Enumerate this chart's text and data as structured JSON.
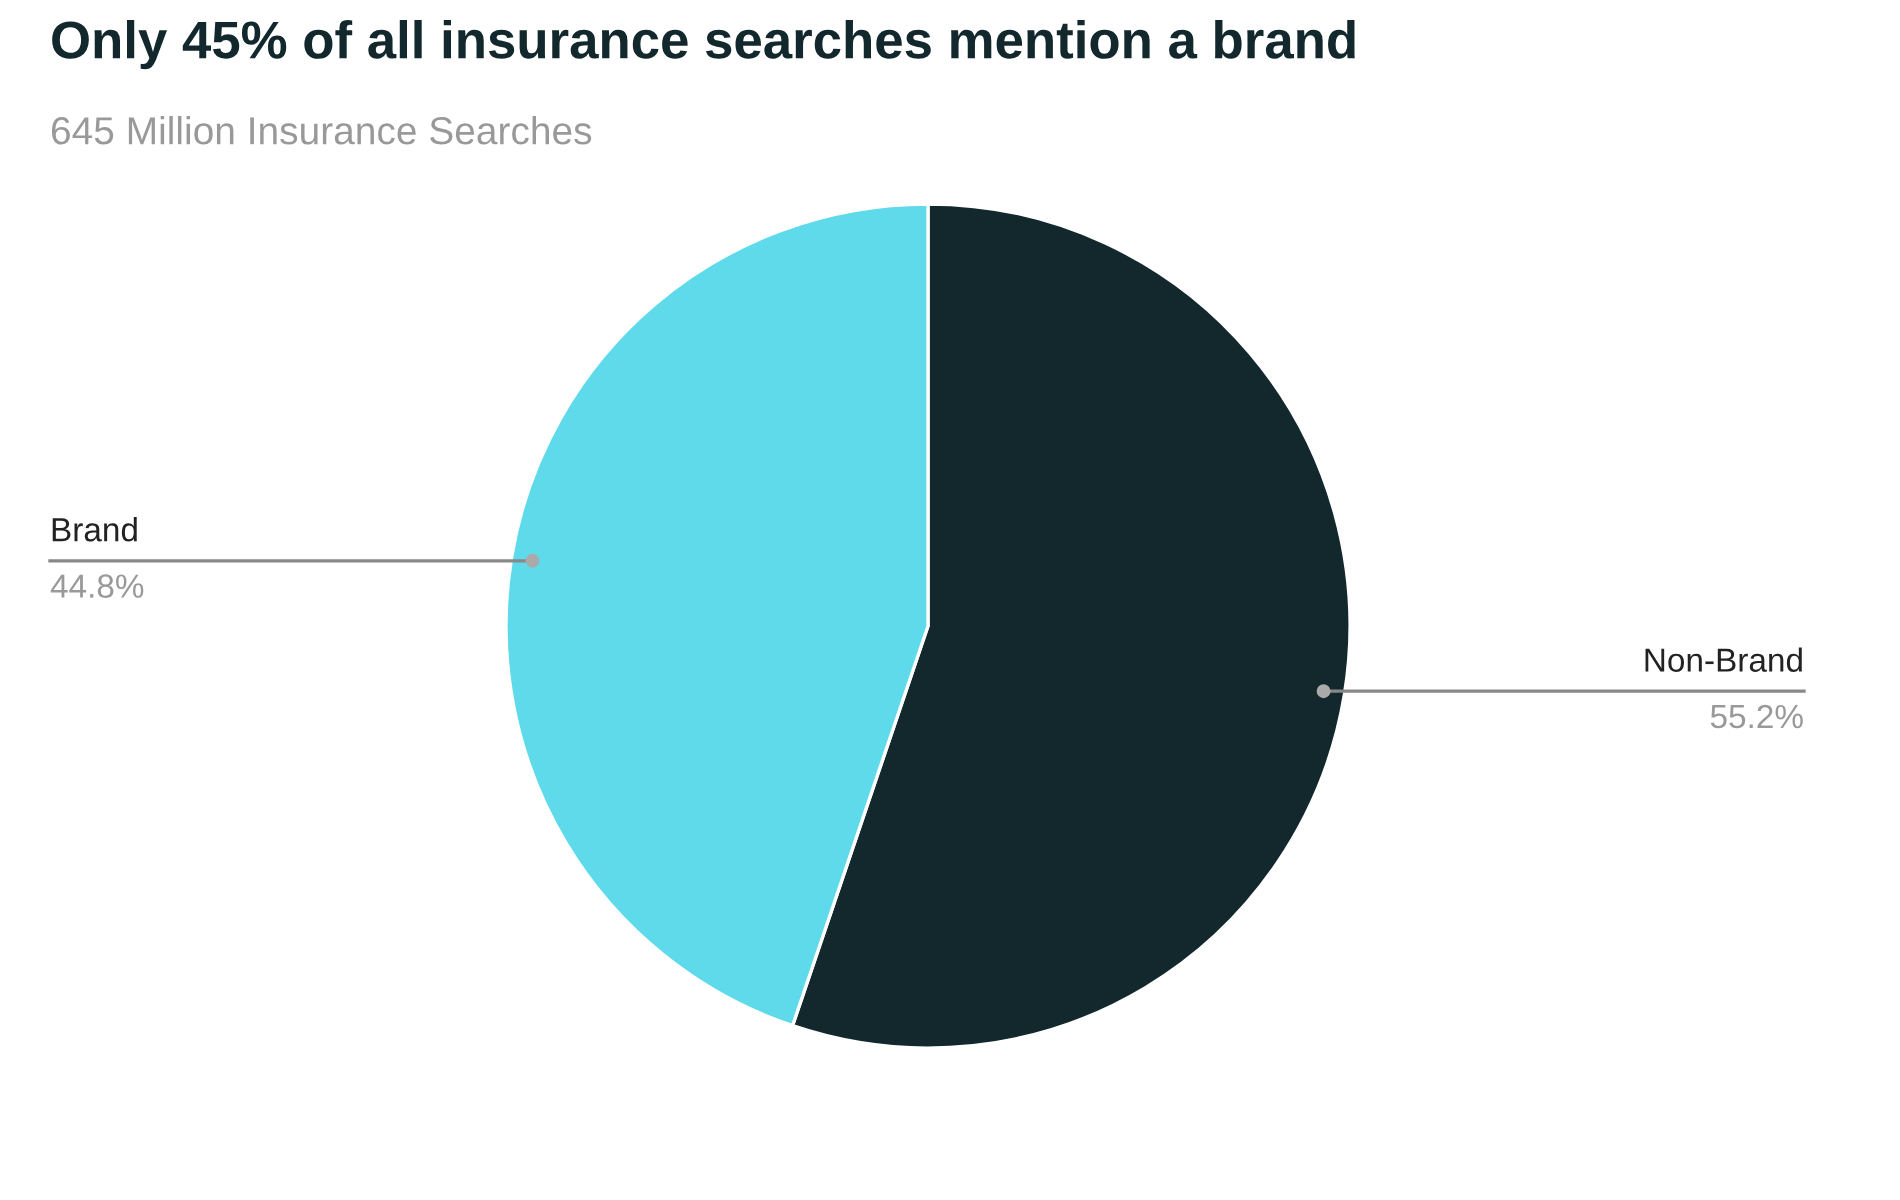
{
  "chart_data": {
    "type": "pie",
    "title": "Only 45% of all insurance searches mention a brand",
    "subtitle": "645 Million Insurance Searches",
    "categories": [
      "Non-Brand",
      "Brand"
    ],
    "values": [
      55.2,
      44.8
    ],
    "value_labels": [
      "55.2%",
      "44.8%"
    ],
    "colors": [
      "#12282d",
      "#5fdaeb"
    ]
  }
}
